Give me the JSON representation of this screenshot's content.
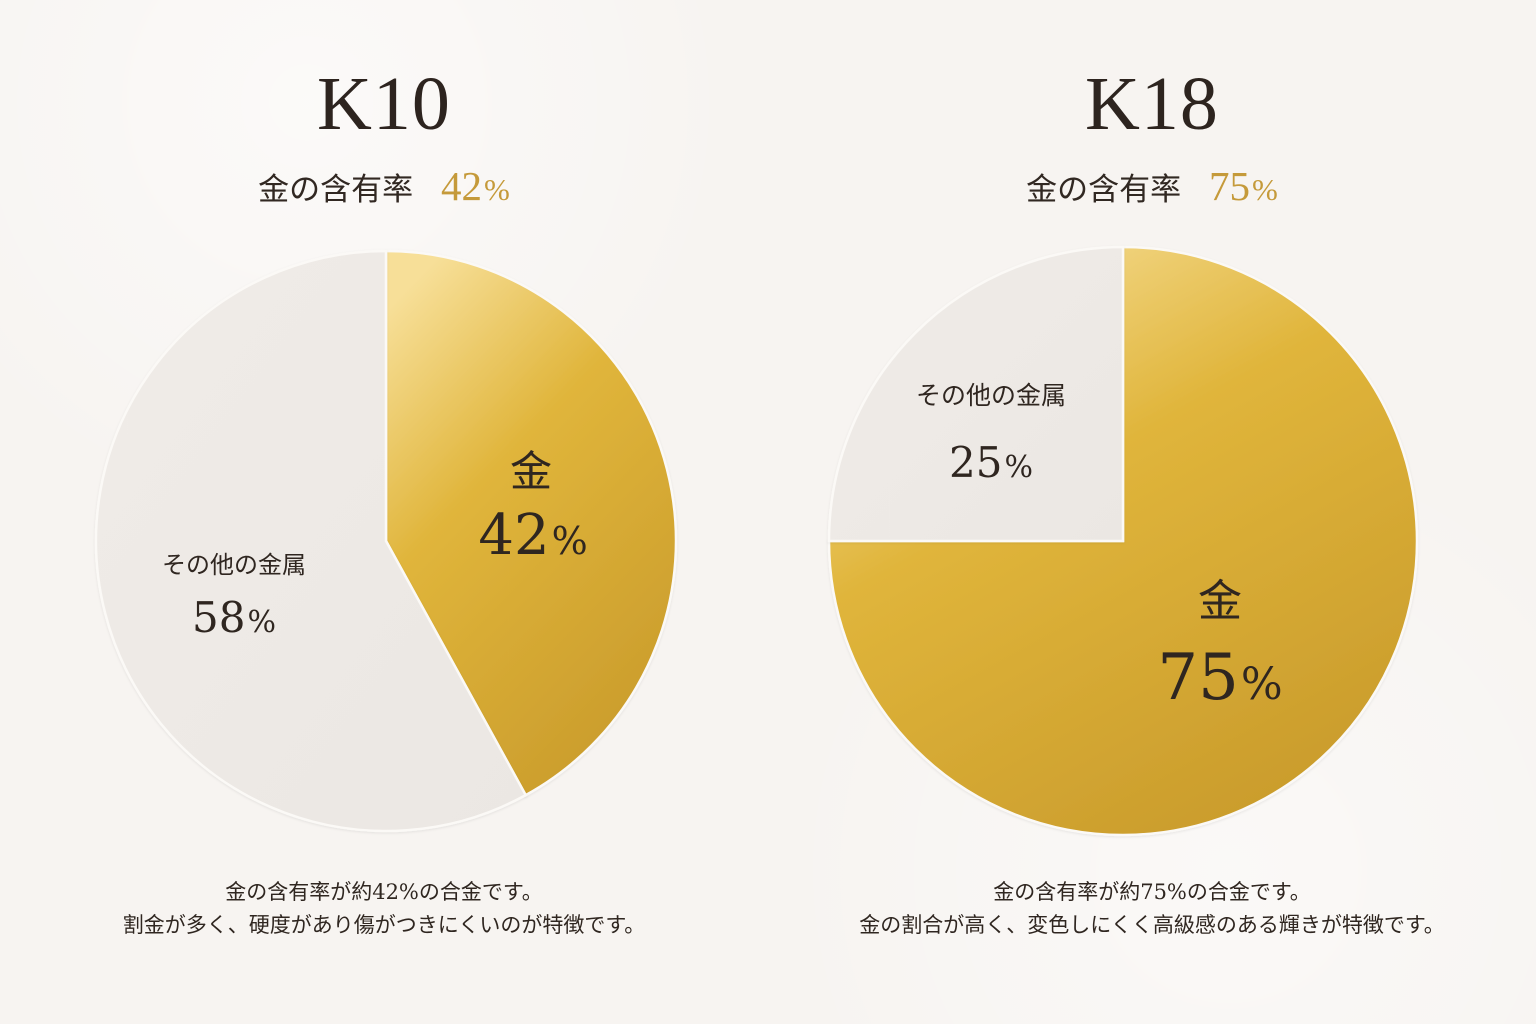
{
  "colors": {
    "background": "#f7f4f1",
    "gold_light": "#f7df98",
    "gold_mid": "#e0b53b",
    "gold_dark": "#c99b2b",
    "other": "#ebe7e3",
    "text": "#2f2620",
    "accent": "#c59a3a"
  },
  "left": {
    "title": "K10",
    "subtitle_label": "金の含有率",
    "subtitle_value": "42",
    "subtitle_unit": "%",
    "description": [
      "金の含有率が約42%の合金です。",
      "割金が多く、硬度があり傷がつきにくいのが特徴です。"
    ]
  },
  "right": {
    "title": "K18",
    "subtitle_label": "金の含有率",
    "subtitle_value": "75",
    "subtitle_unit": "%",
    "description": [
      "金の含有率が約75%の合金です。",
      "金の割合が高く、変色しにくく高級感のある輝きが特徴です。"
    ]
  },
  "chart_data": [
    {
      "type": "pie",
      "title": "K10",
      "slices": [
        {
          "label": "金",
          "value": 42,
          "value_text": "42",
          "unit": "%",
          "color_key": "gold"
        },
        {
          "label": "その他の金属",
          "value": 58,
          "value_text": "58",
          "unit": "%",
          "color_key": "other"
        }
      ]
    },
    {
      "type": "pie",
      "title": "K18",
      "slices": [
        {
          "label": "金",
          "value": 75,
          "value_text": "75",
          "unit": "%",
          "color_key": "gold"
        },
        {
          "label": "その他の金属",
          "value": 25,
          "value_text": "25",
          "unit": "%",
          "color_key": "other"
        }
      ]
    }
  ]
}
